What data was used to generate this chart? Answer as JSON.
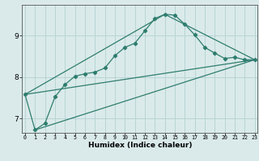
{
  "xlabel": "Humidex (Indice chaleur)",
  "bg_color": "#daeaea",
  "line_color": "#2e7d6e",
  "grid_color": "#b8d4d4",
  "xlim": [
    -0.3,
    23.3
  ],
  "ylim": [
    6.65,
    9.75
  ],
  "yticks": [
    7,
    8,
    9
  ],
  "xticks": [
    0,
    1,
    2,
    3,
    4,
    5,
    6,
    7,
    8,
    9,
    10,
    11,
    12,
    13,
    14,
    15,
    16,
    17,
    18,
    19,
    20,
    21,
    22,
    23
  ],
  "series1_x": [
    0,
    1,
    2,
    3,
    4,
    5,
    6,
    7,
    8,
    9,
    10,
    11,
    12,
    13,
    14,
    15,
    16,
    17,
    18,
    19,
    20,
    21,
    22,
    23
  ],
  "series1_y": [
    7.58,
    6.72,
    6.88,
    7.52,
    7.82,
    8.02,
    8.08,
    8.12,
    8.22,
    8.52,
    8.72,
    8.82,
    9.12,
    9.42,
    9.52,
    9.5,
    9.28,
    9.02,
    8.72,
    8.58,
    8.45,
    8.48,
    8.42,
    8.42
  ],
  "series2_x": [
    0,
    14,
    23
  ],
  "series2_y": [
    7.58,
    9.52,
    8.42
  ],
  "series3_x": [
    0,
    23
  ],
  "series3_y": [
    7.58,
    8.42
  ],
  "series4_x": [
    1,
    23
  ],
  "series4_y": [
    6.72,
    8.42
  ],
  "markersize": 2.2,
  "linewidth": 0.9
}
